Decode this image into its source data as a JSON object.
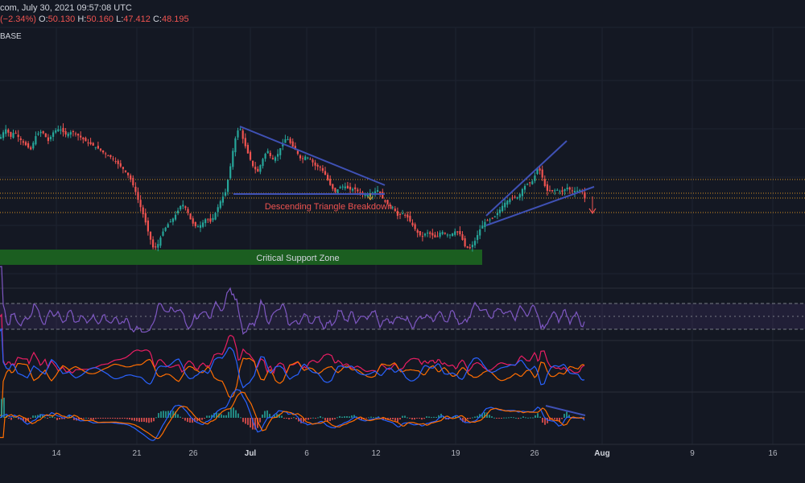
{
  "header": {
    "line1": "com, July 30, 2021 09:57:08 UTC",
    "change": "(−2.34%)",
    "o_label": "O:",
    "o_value": "50.130",
    "h_label": "H:",
    "h_value": "50.160",
    "l_label": "L:",
    "l_value": "47.412",
    "c_label": "C:",
    "c_value": "48.195",
    "symbol_fragment": "BASE"
  },
  "annotations": {
    "breakdown_label": "Descending Triangle Breakdown",
    "support_label": "Critical Support Zone"
  },
  "colors": {
    "background": "#141823",
    "up": "#26a69a",
    "down": "#ef5350",
    "trendline": "#3f51b5",
    "support_zone": "#1b5e20",
    "level_lines": "#f5a623",
    "rsi": "#7e57c2",
    "dmi_plus": "#2962ff",
    "dmi_minus": "#ff6d00",
    "adx": "#e91e63",
    "macd": "#2962ff",
    "signal": "#ff6d00"
  },
  "chart_data": {
    "type": "candlestick",
    "x_axis_ticks": [
      "14",
      "21",
      "26",
      "Jul",
      "6",
      "12",
      "19",
      "26",
      "Aug",
      "9",
      "16"
    ],
    "bold_ticks": [
      "Jul",
      "Aug"
    ],
    "price_path": [
      [
        0,
        47
      ],
      [
        4,
        52
      ],
      [
        8,
        55
      ],
      [
        13,
        48
      ],
      [
        18,
        53
      ],
      [
        24,
        47
      ],
      [
        30,
        43
      ],
      [
        38,
        38
      ],
      [
        45,
        50
      ],
      [
        52,
        53
      ],
      [
        60,
        45
      ],
      [
        67,
        53
      ],
      [
        74,
        55
      ],
      [
        82,
        50
      ],
      [
        90,
        53
      ],
      [
        98,
        49
      ],
      [
        106,
        45
      ],
      [
        114,
        42
      ],
      [
        122,
        39
      ],
      [
        130,
        35
      ],
      [
        138,
        32
      ],
      [
        146,
        27
      ],
      [
        154,
        22
      ],
      [
        161,
        16
      ],
      [
        167,
        7
      ],
      [
        173,
        -5
      ],
      [
        179,
        -16
      ],
      [
        185,
        -30
      ],
      [
        191,
        -42
      ],
      [
        196,
        -38
      ],
      [
        202,
        -28
      ],
      [
        208,
        -22
      ],
      [
        214,
        -18
      ],
      [
        220,
        -12
      ],
      [
        226,
        -5
      ],
      [
        232,
        -10
      ],
      [
        238,
        -20
      ],
      [
        244,
        -24
      ],
      [
        250,
        -22
      ],
      [
        256,
        -17
      ],
      [
        262,
        -20
      ],
      [
        268,
        -12
      ],
      [
        274,
        -3
      ],
      [
        280,
        4
      ],
      [
        285,
        20
      ],
      [
        290,
        40
      ],
      [
        294,
        52
      ],
      [
        298,
        56
      ],
      [
        302,
        46
      ],
      [
        308,
        35
      ],
      [
        314,
        25
      ],
      [
        320,
        20
      ],
      [
        326,
        30
      ],
      [
        332,
        38
      ],
      [
        338,
        30
      ],
      [
        344,
        33
      ],
      [
        350,
        42
      ],
      [
        356,
        48
      ],
      [
        362,
        42
      ],
      [
        368,
        37
      ],
      [
        374,
        30
      ],
      [
        380,
        33
      ],
      [
        386,
        30
      ],
      [
        392,
        25
      ],
      [
        398,
        24
      ],
      [
        404,
        18
      ],
      [
        410,
        10
      ],
      [
        416,
        4
      ],
      [
        422,
        8
      ],
      [
        428,
        9
      ],
      [
        434,
        6
      ],
      [
        440,
        7
      ],
      [
        446,
        4
      ],
      [
        452,
        2
      ],
      [
        458,
        2
      ],
      [
        464,
        4
      ],
      [
        470,
        6
      ],
      [
        476,
        -2
      ],
      [
        482,
        -6
      ],
      [
        488,
        -8
      ],
      [
        494,
        -15
      ],
      [
        500,
        -13
      ],
      [
        506,
        -16
      ],
      [
        512,
        -22
      ],
      [
        518,
        -28
      ],
      [
        524,
        -32
      ],
      [
        530,
        -28
      ],
      [
        536,
        -30
      ],
      [
        542,
        -33
      ],
      [
        548,
        -27
      ],
      [
        554,
        -30
      ],
      [
        560,
        -30
      ],
      [
        566,
        -27
      ],
      [
        572,
        -30
      ],
      [
        578,
        -40
      ],
      [
        584,
        -41
      ],
      [
        590,
        -35
      ],
      [
        596,
        -26
      ],
      [
        602,
        -20
      ],
      [
        608,
        -18
      ],
      [
        614,
        -16
      ],
      [
        620,
        -11
      ],
      [
        626,
        -5
      ],
      [
        632,
        -2
      ],
      [
        638,
        0
      ],
      [
        644,
        0
      ],
      [
        650,
        8
      ],
      [
        656,
        11
      ],
      [
        662,
        13
      ],
      [
        668,
        24
      ],
      [
        672,
        20
      ],
      [
        676,
        10
      ],
      [
        680,
        5
      ],
      [
        686,
        5
      ],
      [
        692,
        6
      ],
      [
        698,
        4
      ],
      [
        704,
        8
      ],
      [
        710,
        5
      ],
      [
        716,
        5
      ],
      [
        722,
        6
      ],
      [
        727,
        -2
      ]
    ],
    "levels": [
      {
        "name": "upper dotted level"
      },
      {
        "name": "breakdown level 1"
      },
      {
        "name": "breakdown level 2"
      },
      {
        "name": "lower dotted level"
      }
    ],
    "panes": [
      "price",
      "RSI",
      "DMI",
      "MACD"
    ]
  }
}
